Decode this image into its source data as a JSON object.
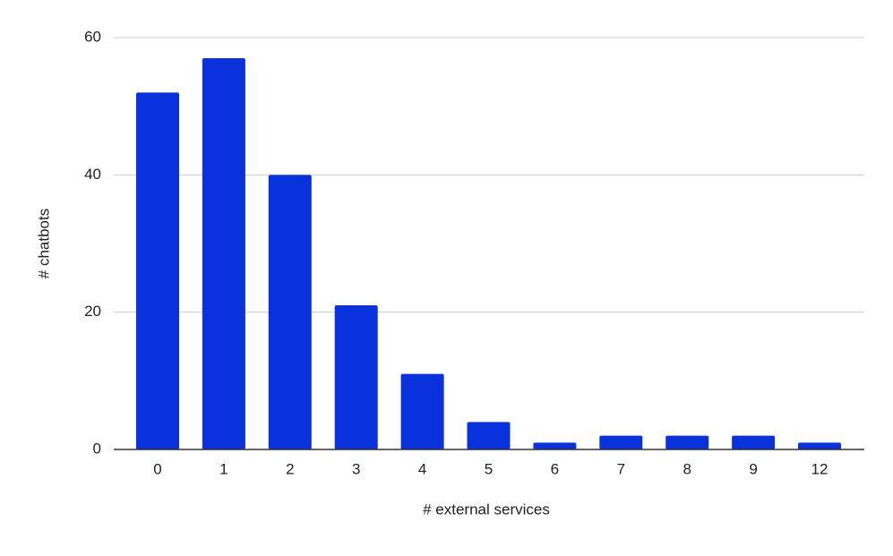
{
  "chart_data": {
    "type": "bar",
    "x_label": "# external services",
    "y_label": "# chatbots",
    "categories": [
      "0",
      "1",
      "2",
      "3",
      "4",
      "5",
      "6",
      "7",
      "8",
      "9",
      "12"
    ],
    "values": [
      52,
      57,
      40,
      21,
      11,
      4,
      1,
      2,
      2,
      2,
      1
    ],
    "color": "#0a32dc",
    "ylim": [
      0,
      60
    ],
    "yticks": [
      0,
      20,
      40,
      60
    ],
    "grid": true
  }
}
